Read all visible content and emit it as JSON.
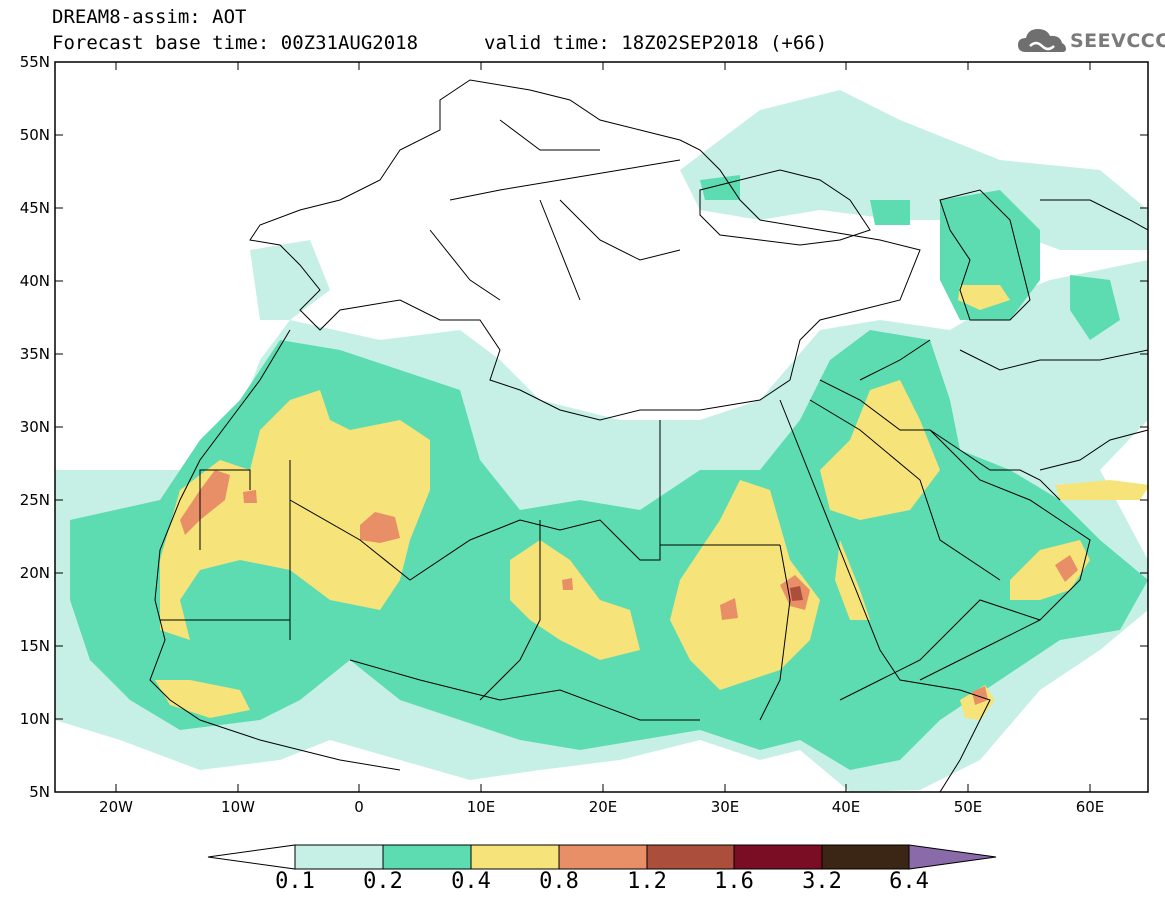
{
  "header": {
    "title": "DREAM8-assim: AOT",
    "base_time": "Forecast base time: 00Z31AUG2018",
    "valid_time": "valid time: 18Z02SEP2018 (+66)"
  },
  "logo": {
    "text": "SEEVCCC",
    "icon": "cloud-icon"
  },
  "map": {
    "lat_labels": [
      "55N",
      "50N",
      "45N",
      "40N",
      "35N",
      "30N",
      "25N",
      "20N",
      "15N",
      "10N",
      "5N"
    ],
    "lon_labels": [
      "20W",
      "10W",
      "0",
      "10E",
      "20E",
      "30E",
      "40E",
      "50E",
      "60E"
    ],
    "background": "#ffffff"
  },
  "colorbar": {
    "labels": [
      "0.1",
      "0.2",
      "0.4",
      "0.8",
      "1.2",
      "1.6",
      "3.2",
      "6.4"
    ],
    "colors": [
      "#ffffff",
      "#c6f0e6",
      "#5ddbb1",
      "#f6e47a",
      "#e88f67",
      "#ab4f3c",
      "#7a0d24",
      "#3b2616",
      "#8a6aa9"
    ]
  }
}
